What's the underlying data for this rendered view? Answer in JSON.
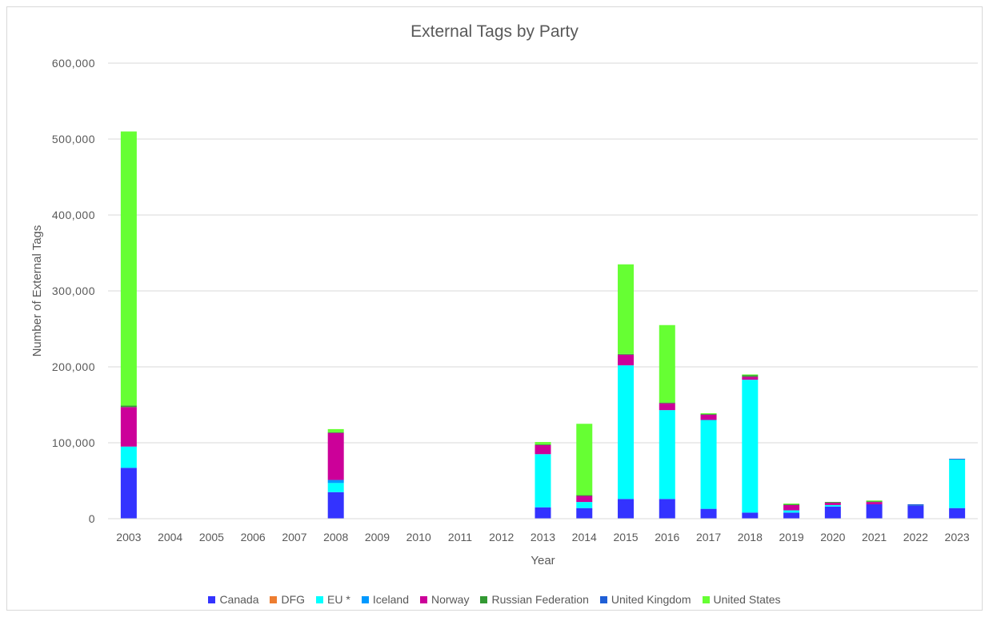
{
  "chart_data": {
    "type": "bar",
    "stacked": true,
    "title": "External Tags by Party",
    "xlabel": "Year",
    "ylabel": "Number of External Tags",
    "ylim": [
      0,
      600000
    ],
    "yticks": [
      0,
      100000,
      200000,
      300000,
      400000,
      500000,
      600000
    ],
    "ytick_labels": [
      "0",
      "100,000",
      "200,000",
      "300,000",
      "400,000",
      "500,000",
      "600,000"
    ],
    "grid": true,
    "legend_position": "bottom",
    "categories": [
      "2003",
      "2004",
      "2005",
      "2006",
      "2007",
      "2008",
      "2009",
      "2010",
      "2011",
      "2012",
      "2013",
      "2014",
      "2015",
      "2016",
      "2017",
      "2018",
      "2019",
      "2020",
      "2021",
      "2022",
      "2023"
    ],
    "series": [
      {
        "name": "Canada",
        "color": "#3333ff",
        "values": [
          67000,
          0,
          0,
          0,
          0,
          35000,
          0,
          0,
          0,
          0,
          15000,
          14000,
          26000,
          26000,
          13000,
          8000,
          8000,
          16000,
          19000,
          17000,
          14000
        ]
      },
      {
        "name": "DFG",
        "color": "#ed7d31",
        "values": [
          0,
          0,
          0,
          0,
          0,
          0,
          0,
          0,
          0,
          0,
          0,
          0,
          0,
          0,
          0,
          0,
          0,
          0,
          0,
          0,
          0
        ]
      },
      {
        "name": "EU *",
        "color": "#00ffff",
        "values": [
          28000,
          0,
          0,
          0,
          0,
          12000,
          0,
          0,
          0,
          0,
          70000,
          8000,
          176000,
          117000,
          117000,
          175000,
          3000,
          2000,
          0,
          0,
          64000
        ]
      },
      {
        "name": "Iceland",
        "color": "#0099ff",
        "values": [
          0,
          0,
          0,
          0,
          0,
          4000,
          0,
          0,
          0,
          0,
          0,
          0,
          0,
          0,
          0,
          0,
          0,
          0,
          0,
          0,
          0
        ]
      },
      {
        "name": "Norway",
        "color": "#cc0099",
        "values": [
          52000,
          0,
          0,
          0,
          0,
          62000,
          0,
          0,
          0,
          0,
          12000,
          8000,
          14000,
          9000,
          7000,
          4000,
          7000,
          3000,
          3000,
          0,
          0
        ]
      },
      {
        "name": "Russian Federation",
        "color": "#339933",
        "values": [
          2000,
          0,
          0,
          0,
          0,
          1000,
          0,
          0,
          0,
          0,
          1000,
          1000,
          1000,
          1000,
          1000,
          2000,
          1000,
          1000,
          1000,
          0,
          0
        ]
      },
      {
        "name": "United Kingdom",
        "color": "#1f5fd6",
        "values": [
          0,
          0,
          0,
          0,
          0,
          0,
          0,
          0,
          0,
          0,
          0,
          0,
          0,
          0,
          0,
          0,
          0,
          0,
          0,
          2000,
          1000
        ]
      },
      {
        "name": "United States",
        "color": "#66ff33",
        "values": [
          361000,
          0,
          0,
          0,
          0,
          4000,
          0,
          0,
          0,
          0,
          3000,
          94000,
          118000,
          102000,
          1000,
          1000,
          1000,
          0,
          1000,
          0,
          0
        ]
      }
    ]
  }
}
